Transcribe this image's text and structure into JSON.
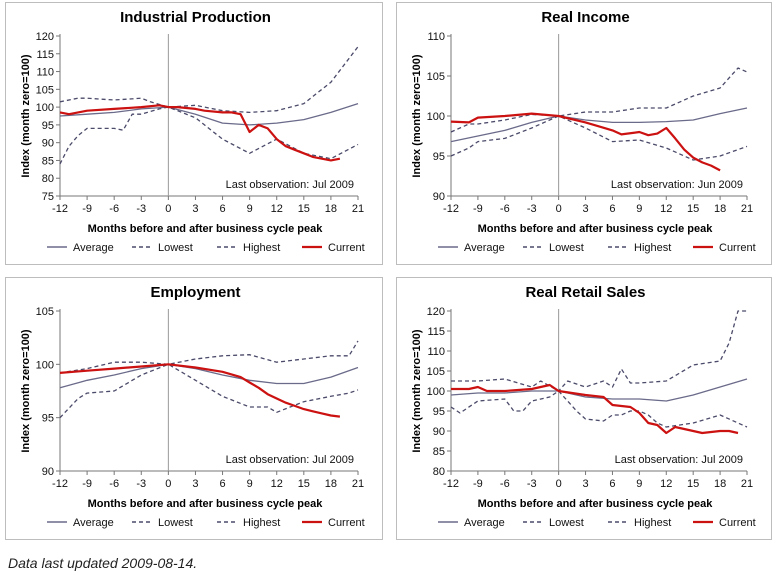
{
  "footer": "Data last updated 2009-08-14.",
  "chart_data": [
    {
      "type": "line",
      "title": "Industrial Production",
      "xlabel": "Months before and after business cycle peak",
      "ylabel": "Index (month zero=100)",
      "xlim": [
        -12,
        21
      ],
      "ylim": [
        75,
        120
      ],
      "xticks": [
        -12,
        -9,
        -6,
        -3,
        0,
        3,
        6,
        9,
        12,
        15,
        18,
        21
      ],
      "yticks": [
        75,
        80,
        85,
        90,
        95,
        100,
        105,
        110,
        115,
        120
      ],
      "annotation": "Last observation: Jul 2009",
      "series": [
        {
          "name": "Average",
          "style": "solid",
          "color": "#6a6a8a",
          "x": [
            -12,
            -9,
            -6,
            -3,
            0,
            3,
            6,
            9,
            12,
            15,
            18,
            21
          ],
          "y": [
            97.5,
            98,
            98.5,
            99.5,
            100,
            98,
            95.5,
            95,
            95.5,
            96.5,
            98.5,
            101
          ]
        },
        {
          "name": "Lowest",
          "style": "dashed",
          "color": "#4a4a6a",
          "x": [
            -12,
            -11,
            -10,
            -9,
            -6,
            -5,
            -4,
            -3,
            -1,
            0,
            3,
            6,
            9,
            12,
            15,
            18,
            21
          ],
          "y": [
            84,
            89,
            92,
            94,
            94,
            93.5,
            98,
            98,
            99.5,
            100,
            97,
            91,
            87,
            91,
            87,
            85.5,
            89.5
          ]
        },
        {
          "name": "Highest",
          "style": "dashed",
          "color": "#4a4a6a",
          "x": [
            -12,
            -10,
            -9,
            -6,
            -3,
            -2,
            0,
            3,
            6,
            9,
            12,
            15,
            18,
            21
          ],
          "y": [
            101.5,
            102.5,
            102.5,
            102,
            102.5,
            101.5,
            100,
            100.5,
            99,
            98.5,
            99,
            101,
            107,
            117
          ]
        },
        {
          "name": "Current",
          "style": "solid",
          "color": "#cc1111",
          "x": [
            -12,
            -11,
            -10,
            -9,
            -6,
            -3,
            -1,
            0,
            1,
            3,
            4,
            6,
            7,
            8,
            9,
            10,
            11,
            12,
            13,
            14,
            15,
            16,
            17,
            18,
            19
          ],
          "y": [
            98.5,
            98,
            98.5,
            99,
            99.5,
            100,
            100.5,
            100,
            100,
            99.5,
            99,
            98.5,
            98.5,
            98,
            93,
            95,
            94,
            91,
            89,
            88,
            87,
            86,
            85.5,
            85,
            85.5
          ]
        }
      ]
    },
    {
      "type": "line",
      "title": "Real Income",
      "xlabel": "Months before and after business cycle peak",
      "ylabel": "Index (month zero=100)",
      "xlim": [
        -12,
        21
      ],
      "ylim": [
        90,
        110
      ],
      "xticks": [
        -12,
        -9,
        -6,
        -3,
        0,
        3,
        6,
        9,
        12,
        15,
        18,
        21
      ],
      "yticks": [
        90,
        95,
        100,
        105,
        110
      ],
      "annotation": "Last observation: Jun 2009",
      "series": [
        {
          "name": "Average",
          "style": "solid",
          "color": "#6a6a8a",
          "x": [
            -12,
            -9,
            -6,
            -3,
            0,
            3,
            6,
            9,
            12,
            15,
            18,
            21
          ],
          "y": [
            96.8,
            97.5,
            98.2,
            99.2,
            100,
            99.5,
            99.2,
            99.2,
            99.3,
            99.5,
            100.3,
            101
          ]
        },
        {
          "name": "Lowest",
          "style": "dashed",
          "color": "#4a4a6a",
          "x": [
            -12,
            -10,
            -9,
            -6,
            -3,
            0,
            3,
            6,
            9,
            12,
            15,
            18,
            21
          ],
          "y": [
            95,
            96,
            96.8,
            97.2,
            98.5,
            100,
            98.5,
            96.8,
            97,
            96,
            94.5,
            95,
            96.2
          ]
        },
        {
          "name": "Highest",
          "style": "dashed",
          "color": "#4a4a6a",
          "x": [
            -12,
            -10,
            -9,
            -6,
            -3,
            0,
            3,
            6,
            9,
            12,
            15,
            18,
            20,
            21
          ],
          "y": [
            98,
            99,
            99,
            99.5,
            100.2,
            100,
            100.5,
            100.5,
            101,
            101,
            102.5,
            103.5,
            106,
            105.5
          ]
        },
        {
          "name": "Current",
          "style": "solid",
          "color": "#cc1111",
          "x": [
            -12,
            -10,
            -9,
            -6,
            -3,
            0,
            3,
            6,
            7,
            9,
            10,
            11,
            12,
            13,
            14,
            15,
            16,
            17,
            18
          ],
          "y": [
            99.3,
            99.2,
            99.8,
            100,
            100.3,
            100,
            99.2,
            98.2,
            97.7,
            98,
            97.6,
            97.8,
            98.5,
            97.2,
            95.8,
            94.8,
            94.2,
            93.8,
            93.2
          ]
        }
      ]
    },
    {
      "type": "line",
      "title": "Employment",
      "xlabel": "Months before and after business cycle peak",
      "ylabel": "Index (month zero=100)",
      "xlim": [
        -12,
        21
      ],
      "ylim": [
        90,
        105
      ],
      "xticks": [
        -12,
        -9,
        -6,
        -3,
        0,
        3,
        6,
        9,
        12,
        15,
        18,
        21
      ],
      "yticks": [
        90,
        95,
        100,
        105
      ],
      "annotation": "Last observation: Jul 2009",
      "series": [
        {
          "name": "Average",
          "style": "solid",
          "color": "#6a6a8a",
          "x": [
            -12,
            -9,
            -6,
            -3,
            0,
            3,
            6,
            9,
            12,
            15,
            18,
            21
          ],
          "y": [
            97.8,
            98.5,
            99,
            99.6,
            100,
            99.6,
            99,
            98.5,
            98.2,
            98.2,
            98.8,
            99.7
          ]
        },
        {
          "name": "Lowest",
          "style": "dashed",
          "color": "#4a4a6a",
          "x": [
            -12,
            -10,
            -9,
            -6,
            -3,
            0,
            3,
            6,
            9,
            11,
            12,
            15,
            18,
            20,
            21
          ],
          "y": [
            95,
            96.8,
            97.3,
            97.5,
            99,
            100,
            98.5,
            97,
            96,
            96,
            95.5,
            96.5,
            97,
            97.3,
            97.6
          ]
        },
        {
          "name": "Highest",
          "style": "dashed",
          "color": "#4a4a6a",
          "x": [
            -12,
            -9,
            -6,
            -3,
            0,
            3,
            6,
            9,
            12,
            15,
            18,
            20,
            21
          ],
          "y": [
            99.2,
            99.6,
            100.2,
            100.2,
            100,
            100.5,
            100.8,
            100.9,
            100.2,
            100.5,
            100.8,
            100.8,
            102.2
          ]
        },
        {
          "name": "Current",
          "style": "solid",
          "color": "#cc1111",
          "x": [
            -12,
            -9,
            -6,
            -3,
            0,
            3,
            6,
            8,
            9,
            10,
            11,
            12,
            13,
            14,
            15,
            16,
            17,
            18,
            19
          ],
          "y": [
            99.2,
            99.4,
            99.6,
            99.8,
            100,
            99.7,
            99.3,
            98.8,
            98.3,
            97.8,
            97.2,
            96.8,
            96.4,
            96.1,
            95.8,
            95.6,
            95.4,
            95.2,
            95.1
          ]
        }
      ]
    },
    {
      "type": "line",
      "title": "Real Retail Sales",
      "xlabel": "Months before and after business cycle peak",
      "ylabel": "Index (month zero=100)",
      "xlim": [
        -12,
        21
      ],
      "ylim": [
        80,
        120
      ],
      "xticks": [
        -12,
        -9,
        -6,
        -3,
        0,
        3,
        6,
        9,
        12,
        15,
        18,
        21
      ],
      "yticks": [
        80,
        85,
        90,
        95,
        100,
        105,
        110,
        115,
        120
      ],
      "annotation": "Last observation: Jul 2009",
      "series": [
        {
          "name": "Average",
          "style": "solid",
          "color": "#6a6a8a",
          "x": [
            -12,
            -9,
            -6,
            -3,
            0,
            3,
            6,
            9,
            12,
            15,
            18,
            21
          ],
          "y": [
            99,
            99.5,
            99.5,
            100,
            100,
            98.5,
            98,
            98,
            97.5,
            99,
            101,
            103
          ]
        },
        {
          "name": "Lowest",
          "style": "dashed",
          "color": "#4a4a6a",
          "x": [
            -12,
            -11,
            -9,
            -6,
            -5,
            -4,
            -3,
            -1,
            0,
            2,
            3,
            5,
            6,
            7,
            8,
            9,
            10,
            11,
            12,
            15,
            18,
            21
          ],
          "y": [
            96,
            94.5,
            97.5,
            98,
            95,
            95,
            97.5,
            98.5,
            100,
            95,
            93,
            92.5,
            94,
            94,
            95,
            95,
            94,
            92,
            91,
            92,
            94,
            91
          ]
        },
        {
          "name": "Highest",
          "style": "dashed",
          "color": "#4a4a6a",
          "x": [
            -12,
            -9,
            -6,
            -3,
            -2,
            0,
            1,
            3,
            5,
            6,
            7,
            8,
            9,
            12,
            15,
            18,
            19,
            20,
            21
          ],
          "y": [
            102.5,
            102.5,
            103,
            101,
            102.5,
            100,
            102.5,
            101,
            102.5,
            101,
            105.5,
            102,
            102,
            102.5,
            106.5,
            107.5,
            112,
            120,
            120
          ]
        },
        {
          "name": "Current",
          "style": "solid",
          "color": "#cc1111",
          "x": [
            -12,
            -10,
            -9,
            -8,
            -6,
            -3,
            -1,
            0,
            3,
            5,
            6,
            8,
            9,
            10,
            11,
            12,
            13,
            14,
            15,
            16,
            18,
            19,
            20
          ],
          "y": [
            100.5,
            100.5,
            101,
            100,
            100,
            100.5,
            101.5,
            100,
            99,
            98.5,
            96.5,
            96,
            94.5,
            92,
            91.5,
            89.5,
            91,
            90.5,
            90,
            89.5,
            90,
            90,
            89.5
          ]
        }
      ]
    }
  ],
  "legend_items": [
    {
      "name": "Average",
      "style": "solid",
      "color": "#6a6a8a"
    },
    {
      "name": "Lowest",
      "style": "dashed",
      "color": "#4a4a6a"
    },
    {
      "name": "Highest",
      "style": "dashed",
      "color": "#4a4a6a"
    },
    {
      "name": "Current",
      "style": "solid",
      "color": "#cc1111"
    }
  ]
}
